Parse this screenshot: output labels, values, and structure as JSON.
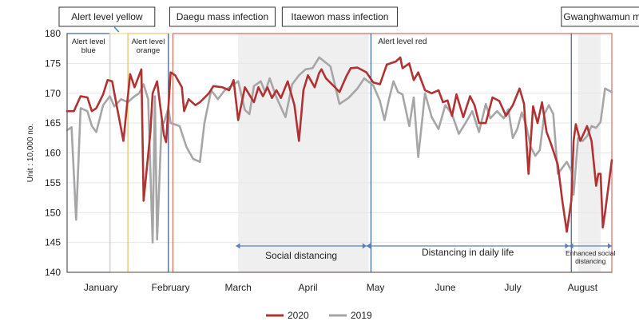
{
  "chart_data": {
    "type": "line",
    "ylabel": "Unit : 10,000 no.",
    "ylim": [
      140,
      180
    ],
    "yticks": [
      140,
      145,
      150,
      155,
      160,
      165,
      170,
      175,
      180
    ],
    "xlim": [
      1,
      243
    ],
    "month_labels": [
      {
        "label": "January",
        "day": 16
      },
      {
        "label": "February",
        "day": 47
      },
      {
        "label": "March",
        "day": 77
      },
      {
        "label": "April",
        "day": 108
      },
      {
        "label": "May",
        "day": 138
      },
      {
        "label": "June",
        "day": 169
      },
      {
        "label": "July",
        "day": 199
      },
      {
        "label": "August",
        "day": 230
      }
    ],
    "events": [
      {
        "label": "Alert level yellow",
        "day": 20
      },
      {
        "label": "Daegu mass infection",
        "day": 48
      },
      {
        "label": "Itaewon mass infection",
        "day": 98
      },
      {
        "label": "Gwanghwamun mass infection",
        "day": 222
      }
    ],
    "phases": [
      {
        "label": "Alert level blue",
        "color": "#3a5f9e",
        "from_day": 1,
        "to_day": 20
      },
      {
        "label": "",
        "color": "#e8e08a",
        "from_day": 20,
        "to_day": 28
      },
      {
        "label": "Alert level orange",
        "color": "#e8c070",
        "from_day": 28,
        "to_day": 46
      },
      {
        "label": "Alert level red",
        "color": "#d96a5e",
        "from_day": 48,
        "to_day": 243
      }
    ],
    "markers": [
      {
        "day": 46,
        "color": "#3a5f9e"
      },
      {
        "day": 136,
        "color": "#3a5f9e"
      },
      {
        "day": 225,
        "color": "#3a5f9e"
      }
    ],
    "shaded": [
      {
        "from_day": 77,
        "to_day": 135
      },
      {
        "from_day": 228,
        "to_day": 238
      }
    ],
    "distancing": [
      {
        "label": "Social distancing",
        "from_day": 76,
        "to_day": 134
      },
      {
        "label": "Distancing in daily life",
        "from_day": 134,
        "to_day": 224
      },
      {
        "label": "Enhanced social distancing",
        "from_day": 224,
        "to_day": 243
      }
    ],
    "series": [
      {
        "name": "2020",
        "color": "#b03232",
        "points": [
          [
            1,
            167
          ],
          [
            4,
            167
          ],
          [
            7,
            169.5
          ],
          [
            10,
            169.3
          ],
          [
            12,
            167
          ],
          [
            14,
            167.5
          ],
          [
            17,
            169.8
          ],
          [
            19,
            172.2
          ],
          [
            21,
            172
          ],
          [
            23,
            168
          ],
          [
            26,
            162
          ],
          [
            29,
            173.2
          ],
          [
            31,
            171
          ],
          [
            34,
            174
          ],
          [
            35,
            152
          ],
          [
            38,
            163.5
          ],
          [
            39,
            170
          ],
          [
            41,
            172
          ],
          [
            44,
            163
          ],
          [
            45,
            161.8
          ],
          [
            47,
            173.5
          ],
          [
            49,
            173
          ],
          [
            52,
            171
          ],
          [
            53,
            167
          ],
          [
            55,
            169
          ],
          [
            58,
            168
          ],
          [
            60,
            168.5
          ],
          [
            64,
            170
          ],
          [
            66,
            171.2
          ],
          [
            70,
            171
          ],
          [
            73,
            170.5
          ],
          [
            75,
            172.2
          ],
          [
            77,
            165.5
          ],
          [
            80,
            171
          ],
          [
            84,
            168.5
          ],
          [
            86,
            171
          ],
          [
            88,
            169.5
          ],
          [
            90,
            171
          ],
          [
            92,
            169.2
          ],
          [
            94,
            170.5
          ],
          [
            96,
            169.2
          ],
          [
            99,
            172
          ],
          [
            102,
            168
          ],
          [
            104,
            162
          ],
          [
            106,
            170.5
          ],
          [
            108,
            173
          ],
          [
            111,
            171
          ],
          [
            113,
            173.4
          ],
          [
            114,
            174
          ],
          [
            116,
            172.5
          ],
          [
            120,
            171
          ],
          [
            122,
            170.2
          ],
          [
            125,
            172.8
          ],
          [
            127,
            174.2
          ],
          [
            130,
            174.3
          ],
          [
            134,
            173.5
          ],
          [
            137,
            171.8
          ],
          [
            140,
            171.5
          ],
          [
            143,
            174.8
          ],
          [
            147,
            175.3
          ],
          [
            149,
            176
          ],
          [
            150,
            174.2
          ],
          [
            153,
            175
          ],
          [
            155,
            172.2
          ],
          [
            157,
            173.5
          ],
          [
            160,
            170.5
          ],
          [
            163,
            170
          ],
          [
            166,
            170.5
          ],
          [
            168,
            168.5
          ],
          [
            170,
            168.8
          ],
          [
            172,
            166.2
          ],
          [
            174,
            169.8
          ],
          [
            177,
            166
          ],
          [
            180,
            169.5
          ],
          [
            182,
            168
          ],
          [
            184,
            165
          ],
          [
            187,
            165
          ],
          [
            190,
            169.3
          ],
          [
            193,
            168.7
          ],
          [
            196,
            166.2
          ],
          [
            199,
            168
          ],
          [
            202,
            170.8
          ],
          [
            204,
            168.2
          ],
          [
            206,
            156.5
          ],
          [
            208,
            167.8
          ],
          [
            210,
            165
          ],
          [
            212,
            168.5
          ],
          [
            214,
            163.5
          ],
          [
            216,
            161.5
          ],
          [
            219,
            158
          ],
          [
            221,
            152
          ],
          [
            223,
            146.8
          ],
          [
            225,
            152
          ],
          [
            226,
            162
          ],
          [
            227,
            164.8
          ],
          [
            229,
            162
          ],
          [
            232,
            164.5
          ],
          [
            234,
            162
          ],
          [
            236,
            154.5
          ],
          [
            237,
            156.5
          ],
          [
            238,
            156.5
          ],
          [
            239,
            147.5
          ],
          [
            240,
            150
          ],
          [
            241,
            153
          ],
          [
            243,
            158.8
          ]
        ]
      },
      {
        "name": "2019",
        "color": "#a6a6a6",
        "points": [
          [
            1,
            163.8
          ],
          [
            3,
            164.3
          ],
          [
            5,
            148.8
          ],
          [
            7,
            167.5
          ],
          [
            10,
            167
          ],
          [
            12,
            164.5
          ],
          [
            14,
            163.5
          ],
          [
            17,
            168
          ],
          [
            20,
            169.5
          ],
          [
            22,
            167.8
          ],
          [
            25,
            169
          ],
          [
            28,
            168.5
          ],
          [
            31,
            169.5
          ],
          [
            33,
            170
          ],
          [
            35,
            171.5
          ],
          [
            37,
            169
          ],
          [
            39,
            145
          ],
          [
            40,
            169.5
          ],
          [
            41,
            145.5
          ],
          [
            43,
            165.3
          ],
          [
            44,
            165
          ],
          [
            46,
            167.5
          ],
          [
            47,
            165
          ],
          [
            51,
            164.5
          ],
          [
            54,
            161
          ],
          [
            57,
            159
          ],
          [
            60,
            158.5
          ],
          [
            62,
            165
          ],
          [
            65,
            170.5
          ],
          [
            68,
            169
          ],
          [
            71,
            170.5
          ],
          [
            74,
            171.2
          ],
          [
            77,
            172
          ],
          [
            80,
            167.2
          ],
          [
            82,
            166.5
          ],
          [
            84,
            171.2
          ],
          [
            87,
            172
          ],
          [
            89,
            170.2
          ],
          [
            91,
            172.5
          ],
          [
            94,
            169.3
          ],
          [
            98,
            166
          ],
          [
            101,
            171.5
          ],
          [
            104,
            173
          ],
          [
            107,
            174
          ],
          [
            110,
            174.2
          ],
          [
            113,
            176
          ],
          [
            118,
            174.5
          ],
          [
            122,
            168.2
          ],
          [
            126,
            169.2
          ],
          [
            130,
            170.8
          ],
          [
            133,
            172.5
          ],
          [
            137,
            171.3
          ],
          [
            140,
            168.7
          ],
          [
            142,
            165.5
          ],
          [
            144,
            169
          ],
          [
            146,
            172
          ],
          [
            148,
            170.2
          ],
          [
            150,
            169.8
          ],
          [
            153,
            164.5
          ],
          [
            155,
            169.3
          ],
          [
            157,
            159.3
          ],
          [
            160,
            170
          ],
          [
            163,
            166
          ],
          [
            166,
            164
          ],
          [
            169,
            168
          ],
          [
            172,
            166.5
          ],
          [
            175,
            163.2
          ],
          [
            178,
            165
          ],
          [
            181,
            167
          ],
          [
            184,
            163.5
          ],
          [
            187,
            168.2
          ],
          [
            189,
            165.8
          ],
          [
            192,
            167
          ],
          [
            195,
            165.8
          ],
          [
            197,
            167.3
          ],
          [
            199,
            162.5
          ],
          [
            201,
            164
          ],
          [
            203,
            166.8
          ],
          [
            205,
            164.5
          ],
          [
            207,
            161
          ],
          [
            209,
            159.5
          ],
          [
            211,
            160.5
          ],
          [
            213,
            166.5
          ],
          [
            215,
            168
          ],
          [
            217,
            166.5
          ],
          [
            219,
            156.5
          ],
          [
            221,
            157.5
          ],
          [
            223,
            158.5
          ],
          [
            225,
            157
          ],
          [
            226,
            153
          ],
          [
            228,
            162.5
          ],
          [
            230,
            162
          ],
          [
            232,
            162.8
          ],
          [
            234,
            164.5
          ],
          [
            236,
            164.2
          ],
          [
            238,
            165.2
          ],
          [
            240,
            170.8
          ],
          [
            243,
            170.2
          ]
        ]
      }
    ]
  }
}
